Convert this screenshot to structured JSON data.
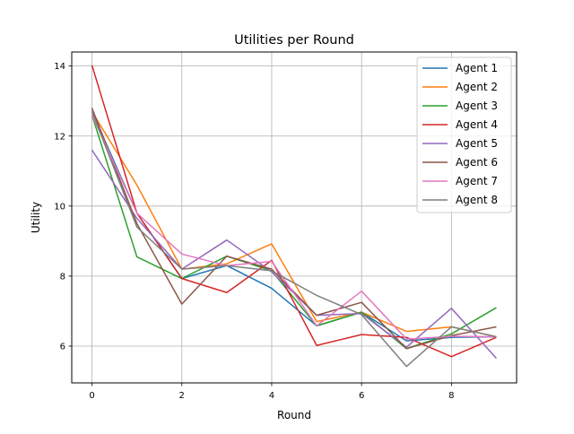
{
  "chart_data": {
    "type": "line",
    "title": "Utilities per Round",
    "xlabel": "Round",
    "ylabel": "Utility",
    "xlim": [
      -0.45,
      9.45
    ],
    "ylim": [
      4.95,
      14.4
    ],
    "xticks": [
      0,
      2,
      4,
      6,
      8
    ],
    "yticks": [
      6,
      8,
      10,
      12,
      14
    ],
    "grid": true,
    "legend_position": "upper right",
    "x": [
      0,
      1,
      2,
      3,
      4,
      5,
      6,
      7,
      8,
      9
    ],
    "series": [
      {
        "name": "Agent 1",
        "color": "#1f77b4",
        "values": [
          12.7,
          9.8,
          7.93,
          8.3,
          7.65,
          6.58,
          6.97,
          6.15,
          6.25,
          6.27
        ]
      },
      {
        "name": "Agent 2",
        "color": "#ff7f0e",
        "values": [
          12.7,
          10.6,
          8.2,
          8.35,
          8.92,
          6.7,
          6.97,
          6.42,
          6.55,
          6.27
        ]
      },
      {
        "name": "Agent 3",
        "color": "#2ca02c",
        "values": [
          12.6,
          8.55,
          7.93,
          8.57,
          8.15,
          6.58,
          6.97,
          5.93,
          6.35,
          7.1
        ]
      },
      {
        "name": "Agent 4",
        "color": "#d62728",
        "values": [
          14.02,
          9.8,
          7.93,
          7.53,
          8.45,
          6.02,
          6.33,
          6.25,
          5.7,
          6.25
        ]
      },
      {
        "name": "Agent 5",
        "color": "#9467bd",
        "values": [
          11.6,
          9.65,
          8.2,
          9.03,
          8.12,
          6.88,
          6.93,
          5.97,
          7.08,
          5.65
        ]
      },
      {
        "name": "Agent 6",
        "color": "#8c564b",
        "values": [
          12.8,
          9.5,
          7.2,
          8.57,
          8.2,
          6.88,
          7.25,
          5.93,
          6.3,
          6.55
        ]
      },
      {
        "name": "Agent 7",
        "color": "#e377c2",
        "values": [
          12.6,
          9.8,
          8.63,
          8.3,
          8.42,
          6.58,
          7.57,
          6.2,
          6.28,
          6.27
        ]
      },
      {
        "name": "Agent 8",
        "color": "#7f7f7f",
        "values": [
          12.7,
          9.4,
          8.2,
          8.3,
          8.15,
          7.45,
          6.9,
          5.42,
          6.55,
          6.27
        ]
      }
    ]
  }
}
